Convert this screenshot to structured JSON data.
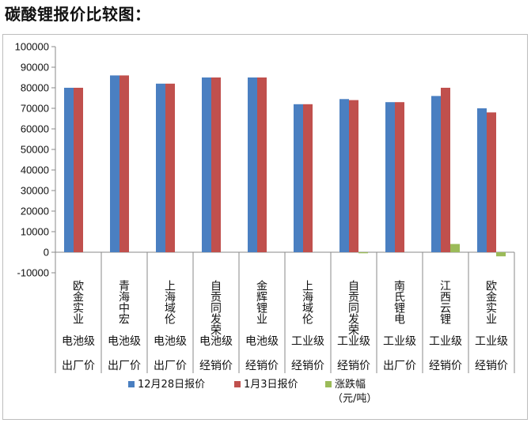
{
  "page_title": "碳酸锂报价比较图：",
  "chart_data": {
    "type": "bar",
    "categories": [
      "欧金实业",
      "青海中宏",
      "上海域伦",
      "自贡同发荣",
      "金辉锂业",
      "上海域伦",
      "自贡同发荣",
      "南氏锂电",
      "江西云锂",
      "欧金实业"
    ],
    "grades": [
      "电池级",
      "电池级",
      "电池级",
      "电池级",
      "电池级",
      "工业级",
      "工业级",
      "工业级",
      "工业级",
      "工业级"
    ],
    "price_types": [
      "出厂价",
      "出厂价",
      "出厂价",
      "经销价",
      "经销价",
      "经销价",
      "经销价",
      "出厂价",
      "经销价",
      "经销价"
    ],
    "series": [
      {
        "name": "12月28日报价",
        "color": "#4a7fc1",
        "values": [
          80000,
          86000,
          82000,
          85000,
          85000,
          72000,
          74500,
          73000,
          76000,
          70000
        ]
      },
      {
        "name": "1月3日报价",
        "color": "#c0504d",
        "values": [
          80000,
          86000,
          82000,
          85000,
          85000,
          72000,
          74000,
          73000,
          80000,
          68000
        ]
      },
      {
        "name": "涨跌幅",
        "color": "#9bbb59",
        "values": [
          0,
          0,
          0,
          0,
          0,
          0,
          -500,
          0,
          4000,
          -2000
        ]
      }
    ],
    "legend_unit": "（元/吨）",
    "ylim": [
      -10000,
      100000
    ],
    "yticks": [
      "100000",
      "90000",
      "80000",
      "70000",
      "60000",
      "50000",
      "40000",
      "30000",
      "20000",
      "10000",
      "0",
      "-10000"
    ],
    "grid": false,
    "legend_position": "bottom"
  }
}
